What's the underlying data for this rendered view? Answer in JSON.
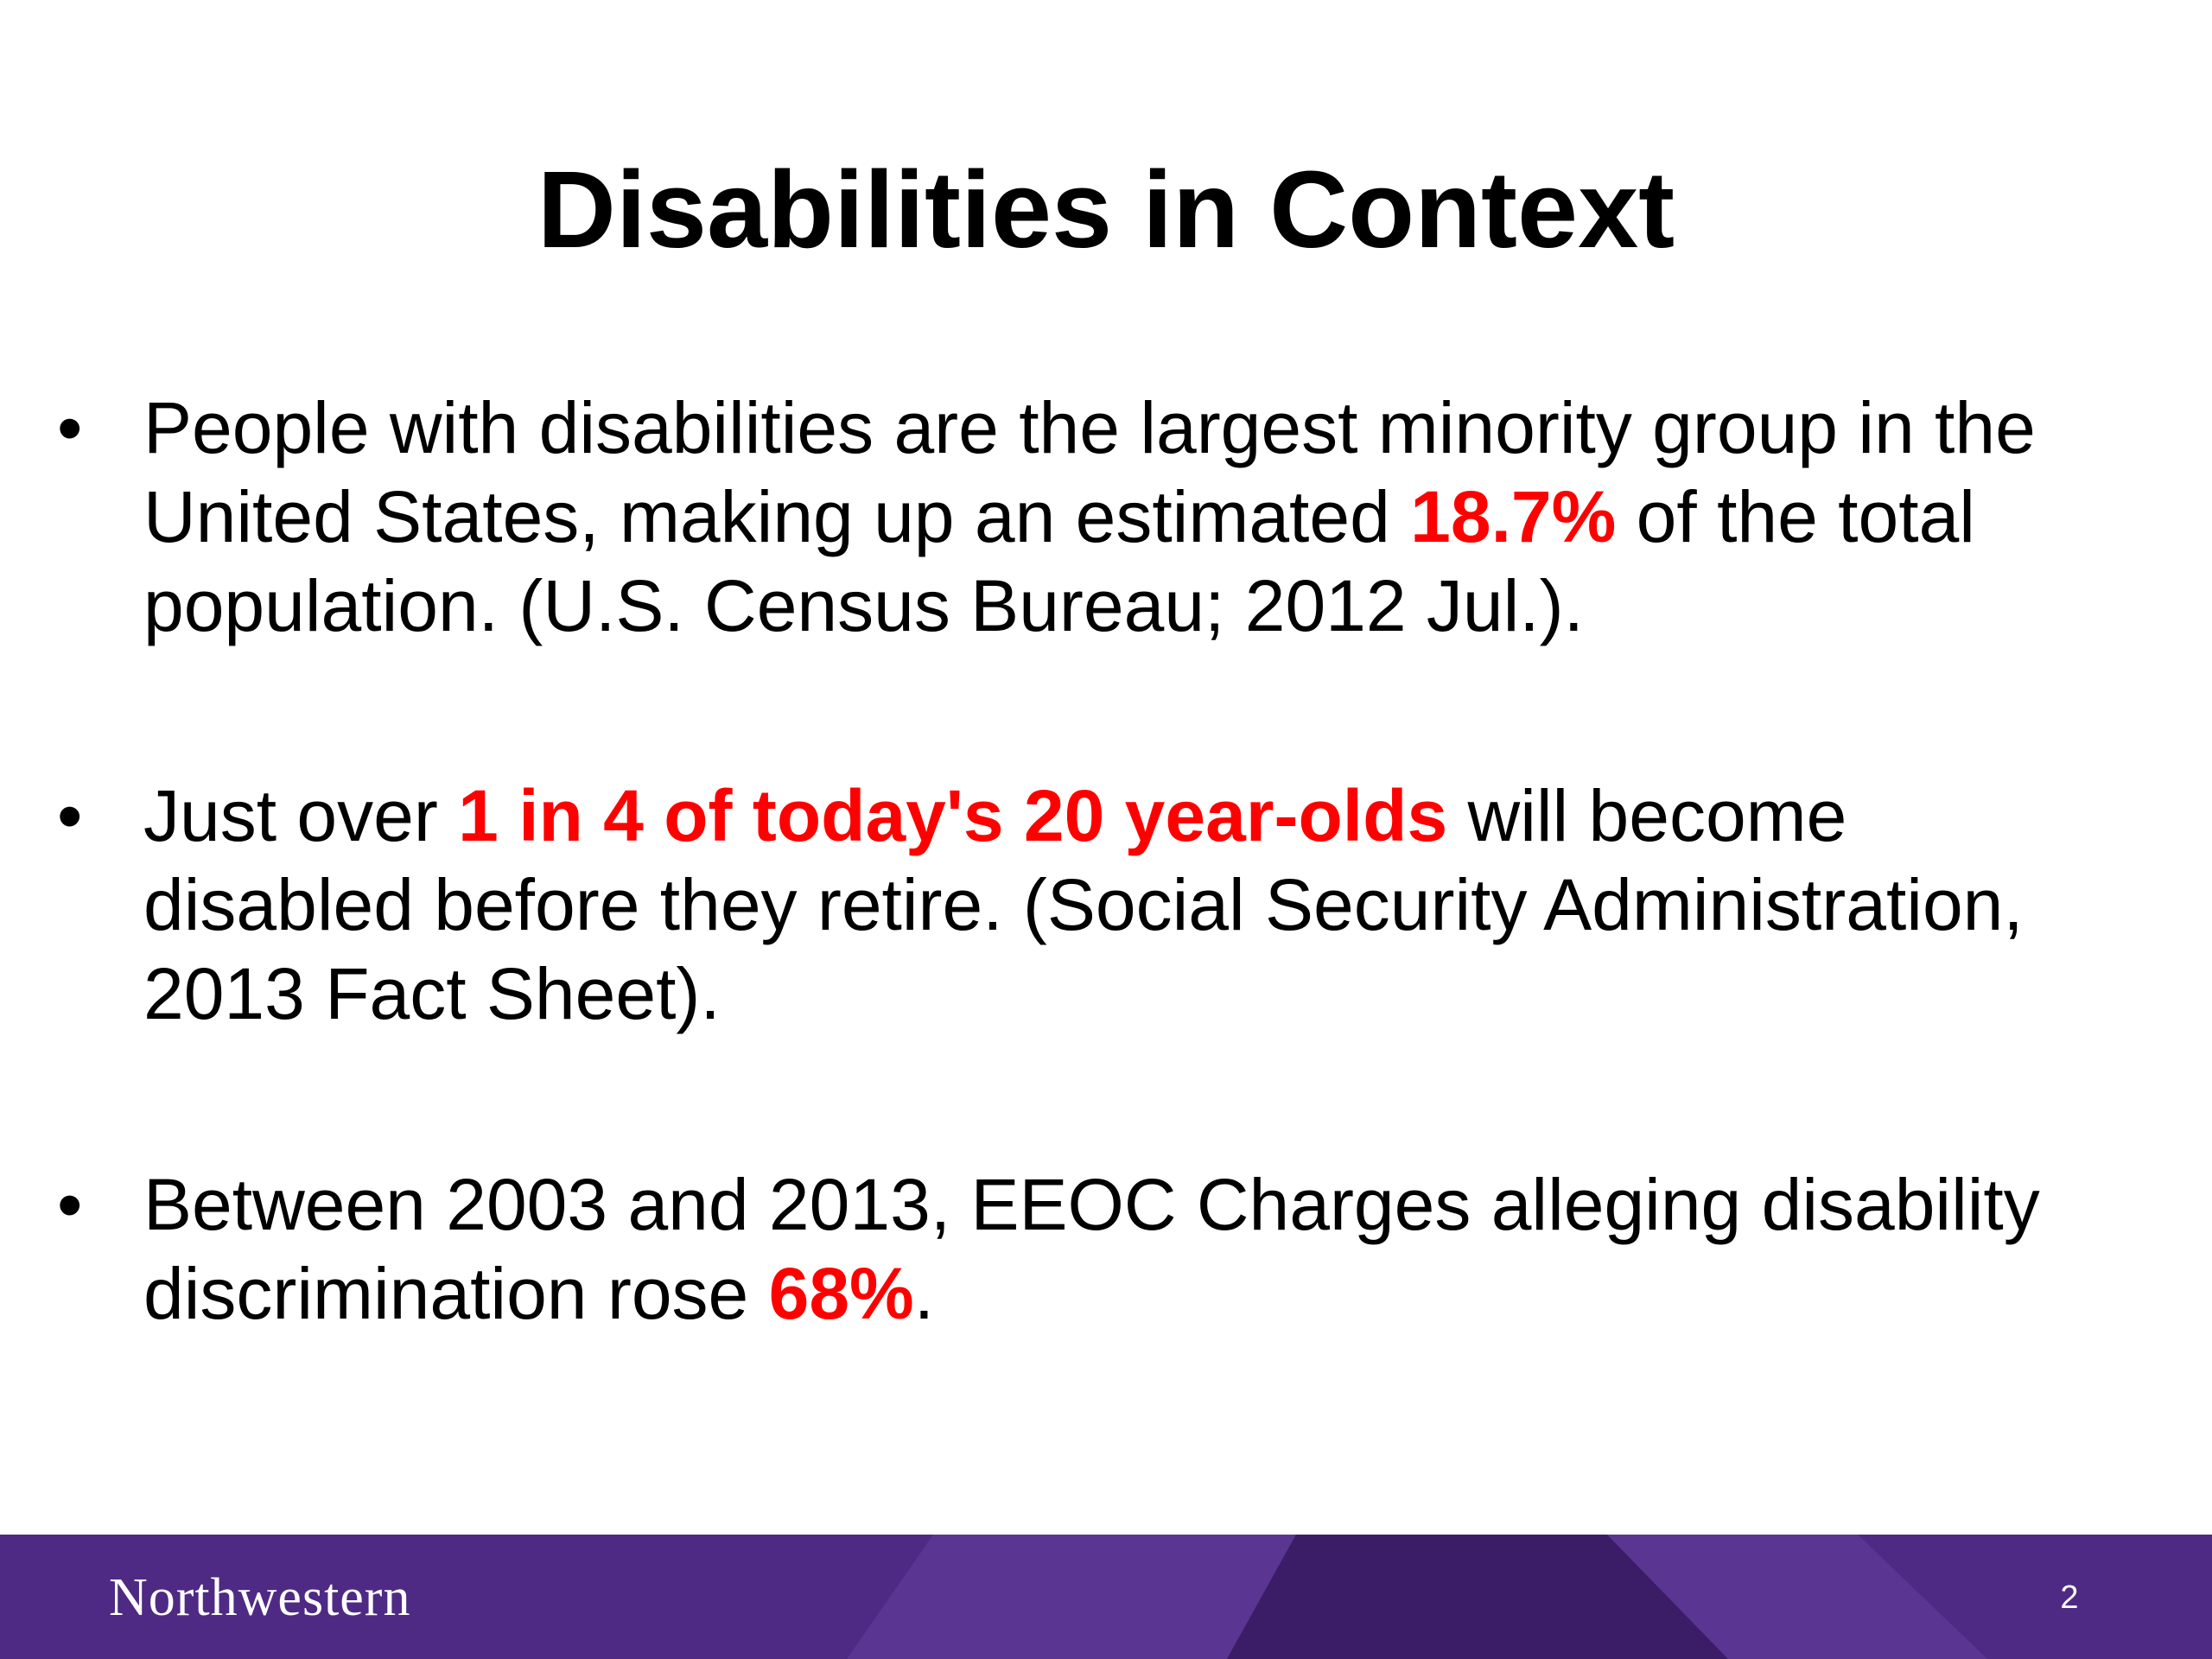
{
  "slide": {
    "title": "Disabilities in Context",
    "bullet_symbol": "•",
    "bullets": [
      {
        "before": "People with disabilities are the largest minority group in the United States, making up an estimated ",
        "highlight": "18.7%",
        "after": " of the total population. (U.S. Census Bureau; 2012 Jul.)."
      },
      {
        "before": "Just over ",
        "highlight": "1 in 4 of today's 20 year-olds",
        "after": " will become disabled before they retire. (Social Security Administration, 2013 Fact Sheet)."
      },
      {
        "before": "Between 2003 and 2013, EEOC Charges alleging disability discrimination rose ",
        "highlight": "68%",
        "after": "."
      }
    ]
  },
  "footer": {
    "logo_text": "Northwestern",
    "page_number": "2"
  },
  "colors": {
    "highlight": "#ff0000",
    "footer_purple": "#4e2a84",
    "footer_purple_light": "#5b3592",
    "footer_purple_dark": "#3a1d66",
    "text": "#000000"
  }
}
